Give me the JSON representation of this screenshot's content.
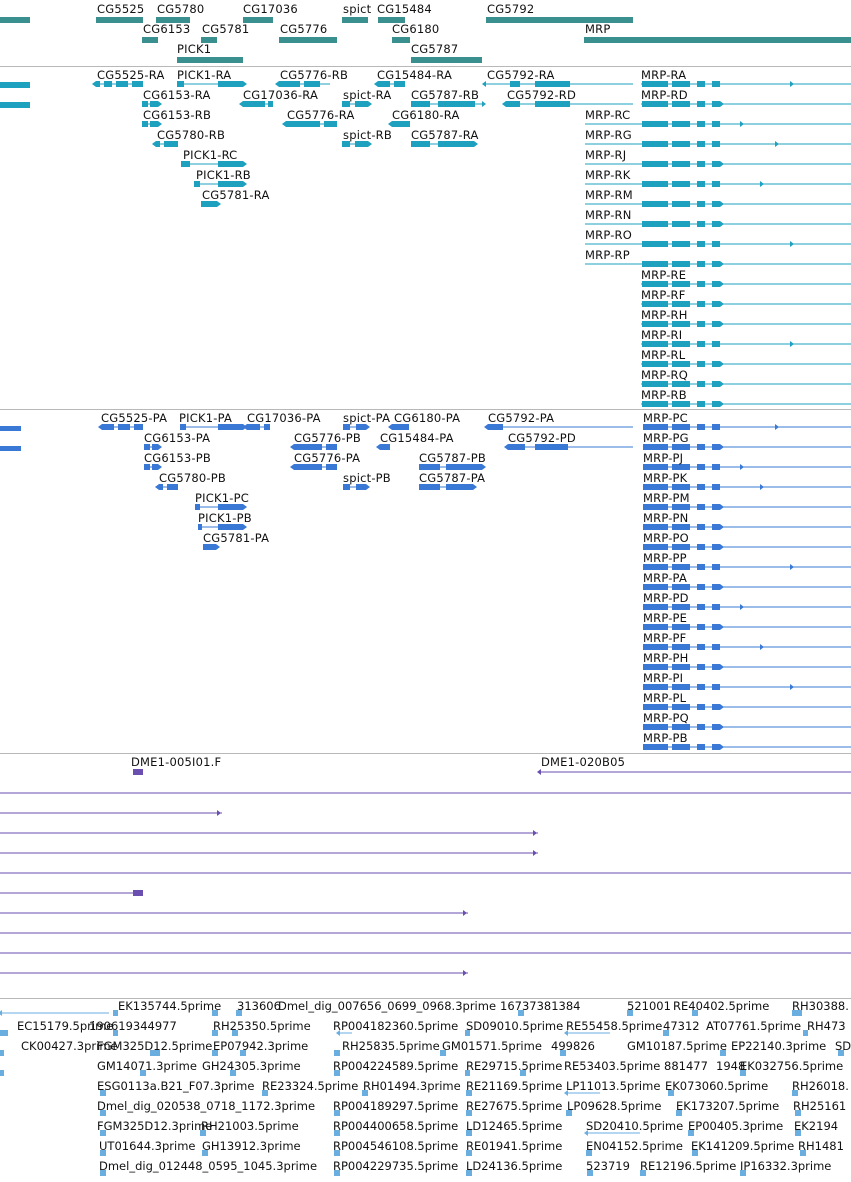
{
  "colors": {
    "gene": "#3a8f8f",
    "transcript_rna": "#1ea0bf",
    "transcript_protein": "#3a78d6",
    "clone": "#6a4fb0",
    "est": "#6aaee0"
  },
  "tracks": {
    "genes": {
      "items": [
        {
          "label": "CG5525"
        },
        {
          "label": "CG5780"
        },
        {
          "label": "CG17036"
        },
        {
          "label": "spict"
        },
        {
          "label": "CG15484"
        },
        {
          "label": "CG5792"
        },
        {
          "label": "CG6153"
        },
        {
          "label": "CG5781"
        },
        {
          "label": "CG5776"
        },
        {
          "label": "CG6180"
        },
        {
          "label": "MRP"
        },
        {
          "label": "PICK1"
        },
        {
          "label": "CG5787"
        }
      ]
    },
    "rna_transcripts": {
      "items": [
        {
          "label": "CG5525-RA"
        },
        {
          "label": "PICK1-RA"
        },
        {
          "label": "CG5776-RB"
        },
        {
          "label": "CG15484-RA"
        },
        {
          "label": "CG5792-RA"
        },
        {
          "label": "MRP-RA"
        },
        {
          "label": "CG6153-RA"
        },
        {
          "label": "CG17036-RA"
        },
        {
          "label": "spict-RA"
        },
        {
          "label": "CG5787-RB"
        },
        {
          "label": "CG5792-RD"
        },
        {
          "label": "MRP-RD"
        },
        {
          "label": "CG6153-RB"
        },
        {
          "label": "CG5776-RA"
        },
        {
          "label": "CG6180-RA"
        },
        {
          "label": "MRP-RC"
        },
        {
          "label": "CG5780-RB"
        },
        {
          "label": "spict-RB"
        },
        {
          "label": "CG5787-RA"
        },
        {
          "label": "MRP-RG"
        },
        {
          "label": "PICK1-RC"
        },
        {
          "label": "MRP-RJ"
        },
        {
          "label": "PICK1-RB"
        },
        {
          "label": "MRP-RK"
        },
        {
          "label": "CG5781-RA"
        },
        {
          "label": "MRP-RM"
        },
        {
          "label": "MRP-RN"
        },
        {
          "label": "MRP-RO"
        },
        {
          "label": "MRP-RP"
        },
        {
          "label": "MRP-RE"
        },
        {
          "label": "MRP-RF"
        },
        {
          "label": "MRP-RH"
        },
        {
          "label": "MRP-RI"
        },
        {
          "label": "MRP-RL"
        },
        {
          "label": "MRP-RQ"
        },
        {
          "label": "MRP-RB"
        }
      ]
    },
    "protein_transcripts": {
      "items": [
        {
          "label": "CG5525-PA"
        },
        {
          "label": "PICK1-PA"
        },
        {
          "label": "CG17036-PA"
        },
        {
          "label": "spict-PA"
        },
        {
          "label": "CG6180-PA"
        },
        {
          "label": "CG5792-PA"
        },
        {
          "label": "MRP-PC"
        },
        {
          "label": "CG6153-PA"
        },
        {
          "label": "CG5776-PB"
        },
        {
          "label": "CG15484-PA"
        },
        {
          "label": "CG5792-PD"
        },
        {
          "label": "MRP-PG"
        },
        {
          "label": "CG6153-PB"
        },
        {
          "label": "CG5776-PA"
        },
        {
          "label": "CG5787-PB"
        },
        {
          "label": "MRP-PJ"
        },
        {
          "label": "CG5780-PB"
        },
        {
          "label": "spict-PB"
        },
        {
          "label": "CG5787-PA"
        },
        {
          "label": "MRP-PK"
        },
        {
          "label": "PICK1-PC"
        },
        {
          "label": "MRP-PM"
        },
        {
          "label": "PICK1-PB"
        },
        {
          "label": "MRP-PN"
        },
        {
          "label": "CG5781-PA"
        },
        {
          "label": "MRP-PO"
        },
        {
          "label": "MRP-PP"
        },
        {
          "label": "MRP-PA"
        },
        {
          "label": "MRP-PD"
        },
        {
          "label": "MRP-PE"
        },
        {
          "label": "MRP-PF"
        },
        {
          "label": "MRP-PH"
        },
        {
          "label": "MRP-PI"
        },
        {
          "label": "MRP-PL"
        },
        {
          "label": "MRP-PQ"
        },
        {
          "label": "MRP-PB"
        }
      ]
    },
    "clones": {
      "items": [
        {
          "label": "DME1-005I01.F"
        },
        {
          "label": "DME1-020B05"
        }
      ]
    },
    "ests": {
      "rows": [
        "EK135744.5prime",
        "313606",
        "Dmel_dig_007656_0699_0968.3prime",
        "16737381384",
        "521001",
        "RE40402.5prime",
        "RH30388.",
        "EC15179.5prime",
        "190619344977",
        "RH25350.5prime",
        "RP004182360.5prime",
        "SD09010.5prime",
        "RE55458.5prime",
        "47312",
        "AT07761.5prime",
        "RH473",
        "CK00427.3prime",
        "FGM325D12.5prime",
        "EP07942.3prime",
        "RH25835.5prime",
        "GM01571.5prime",
        "499826",
        "GM10187.5prime",
        "EP22140.3prime",
        "SD",
        "GM14071.3prime",
        "GH24305.3prime",
        "RP004224589.5prime",
        "RE29715.5prime",
        "RE53403.5prime",
        "881477",
        "1948",
        "EK032756.5prime",
        "ESG0113a.B21_F07.3prime",
        "RE23324.5prime",
        "RH01494.3prime",
        "RE21169.5prime",
        "LP11013.5prime",
        "EK073060.5prime",
        "RH26018.",
        "Dmel_dig_020538_0718_1172.3prime",
        "RP004189297.5prime",
        "RE27675.5prime",
        "LP09628.5prime",
        "EK173207.5prime",
        "RH25161",
        "FGM325D12.3prime",
        "RH21003.5prime",
        "RP004400658.5prime",
        "LD12465.5prime",
        "SD20410.5prime",
        "EP00405.3prime",
        "EK2194",
        "UT01644.3prime",
        "GH13912.3prime",
        "RP004546108.5prime",
        "RE01941.5prime",
        "EN04152.5prime",
        "EK141209.5prime",
        "RH1481",
        "Dmel_dig_012448_0595_1045.3prime",
        "RP004229735.5prime",
        "LD24136.5prime",
        "523719",
        "RE12196.5prime",
        "IP16332.3prime"
      ]
    }
  }
}
